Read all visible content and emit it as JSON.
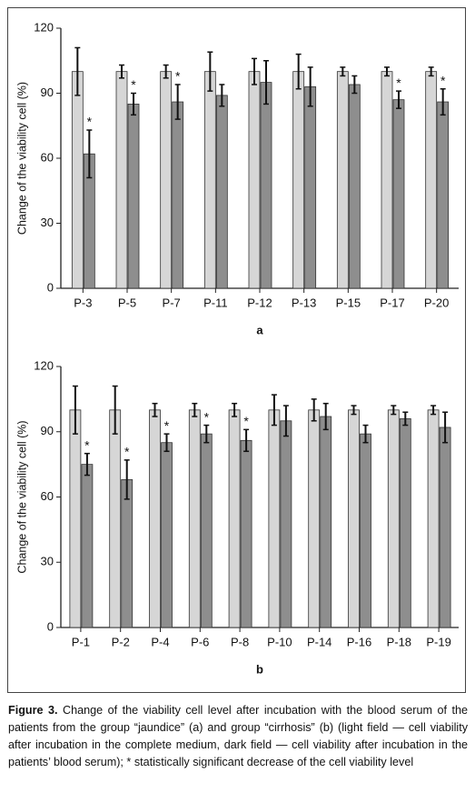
{
  "charts": [
    {
      "type": "bar",
      "ylabel": "Change of the viability cell (%)",
      "panel_label": "a",
      "categories": [
        "P-3",
        "P-5",
        "P-7",
        "P-11",
        "P-12",
        "P-13",
        "P-15",
        "P-17",
        "P-20"
      ],
      "series": [
        {
          "color": "#d6d6d6",
          "values": [
            100,
            100,
            100,
            100,
            100,
            100,
            100,
            100,
            100
          ],
          "errors": [
            11,
            3,
            3,
            9,
            6,
            8,
            2,
            2,
            2
          ]
        },
        {
          "color": "#8e8e8e",
          "values": [
            62,
            85,
            86,
            89,
            95,
            93,
            94,
            87,
            86
          ],
          "errors": [
            11,
            5,
            8,
            5,
            10,
            9,
            4,
            4,
            6
          ],
          "significance": [
            "*",
            "*",
            "*",
            null,
            null,
            null,
            null,
            "*",
            "*"
          ]
        }
      ],
      "ylim": [
        0,
        120
      ],
      "yticks": [
        0,
        30,
        60,
        90,
        120
      ]
    },
    {
      "type": "bar",
      "ylabel": "Change of the viability cell (%)",
      "panel_label": "b",
      "categories": [
        "P-1",
        "P-2",
        "P-4",
        "P-6",
        "P-8",
        "P-10",
        "P-14",
        "P-16",
        "P-18",
        "P-19"
      ],
      "series": [
        {
          "color": "#d6d6d6",
          "values": [
            100,
            100,
            100,
            100,
            100,
            100,
            100,
            100,
            100,
            100
          ],
          "errors": [
            11,
            11,
            3,
            3,
            3,
            7,
            5,
            2,
            2,
            2
          ]
        },
        {
          "color": "#8e8e8e",
          "values": [
            75,
            68,
            85,
            89,
            86,
            95,
            97,
            89,
            96,
            92
          ],
          "errors": [
            5,
            9,
            4,
            4,
            5,
            7,
            6,
            4,
            3,
            7
          ],
          "significance": [
            "*",
            "*",
            "*",
            "*",
            "*",
            null,
            null,
            null,
            null,
            null
          ]
        }
      ],
      "ylim": [
        0,
        120
      ],
      "yticks": [
        0,
        30,
        60,
        90,
        120
      ]
    }
  ],
  "caption": {
    "label": "Figure 3.",
    "text": "Change of the viability cell level after incubation with the blood serum of the patients from the group “jaundice” (a) and group “cirrhosis” (b) (light field — cell viability after incubation in the complete medium, dark field — cell viability after incubation in the patients’ blood serum); * statistically significant decrease of the cell viability level"
  }
}
